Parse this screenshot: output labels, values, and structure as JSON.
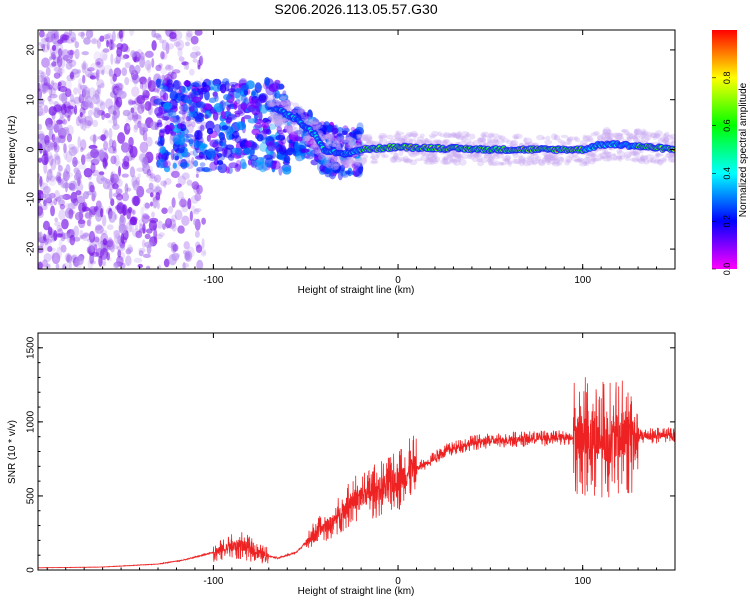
{
  "title": "S206.2026.113.05.57.G30",
  "chart_data": [
    {
      "type": "heatmap",
      "xlabel": "Height of straight line (km)",
      "ylabel": "Frequency (Hz)",
      "xlim": [
        -195,
        150
      ],
      "ylim": [
        -24,
        24
      ],
      "xticks": [
        -100,
        0,
        100
      ],
      "yticks": [
        -20,
        -10,
        0,
        10,
        20
      ],
      "colorbar": {
        "label": "Normalized spectral amplitude",
        "range": [
          0,
          1
        ],
        "ticks": [
          0.0,
          0.2,
          0.4,
          0.6,
          0.8
        ],
        "tick_labels": [
          "0.0",
          "0.2",
          "0.4",
          "0.6",
          "0.8"
        ],
        "colormap": [
          "#ff00ff",
          "#0000ff",
          "#00ffff",
          "#00ff00",
          "#ffff00",
          "#ff0000"
        ]
      },
      "ridge": [
        {
          "x": -65,
          "y": 8
        },
        {
          "x": -55,
          "y": 6
        },
        {
          "x": -45,
          "y": 3
        },
        {
          "x": -40,
          "y": 0
        },
        {
          "x": -30,
          "y": -1
        },
        {
          "x": -20,
          "y": 0
        },
        {
          "x": 0,
          "y": 0.5
        },
        {
          "x": 50,
          "y": 0
        },
        {
          "x": 100,
          "y": 0
        },
        {
          "x": 110,
          "y": 1
        },
        {
          "x": 120,
          "y": 1
        },
        {
          "x": 150,
          "y": 0
        }
      ]
    },
    {
      "type": "line",
      "xlabel": "Height of straight line (km)",
      "ylabel": "SNR (10 * v/v)",
      "xlim": [
        -195,
        150
      ],
      "ylim": [
        0,
        1600
      ],
      "xticks": [
        -100,
        0,
        100
      ],
      "yticks": [
        0,
        500,
        1000,
        1500
      ],
      "line_color": "#ee2222",
      "envelope": [
        {
          "x": -195,
          "y": 15
        },
        {
          "x": -160,
          "y": 20
        },
        {
          "x": -130,
          "y": 40
        },
        {
          "x": -115,
          "y": 70
        },
        {
          "x": -100,
          "y": 120
        },
        {
          "x": -85,
          "y": 170
        },
        {
          "x": -75,
          "y": 110
        },
        {
          "x": -65,
          "y": 80
        },
        {
          "x": -55,
          "y": 120
        },
        {
          "x": -45,
          "y": 250
        },
        {
          "x": -35,
          "y": 330
        },
        {
          "x": -25,
          "y": 470
        },
        {
          "x": -15,
          "y": 520
        },
        {
          "x": -5,
          "y": 580
        },
        {
          "x": 5,
          "y": 650
        },
        {
          "x": 15,
          "y": 720
        },
        {
          "x": 25,
          "y": 800
        },
        {
          "x": 40,
          "y": 860
        },
        {
          "x": 60,
          "y": 880
        },
        {
          "x": 80,
          "y": 890
        },
        {
          "x": 95,
          "y": 900
        },
        {
          "x": 105,
          "y": 900
        },
        {
          "x": 115,
          "y": 880
        },
        {
          "x": 125,
          "y": 900
        },
        {
          "x": 150,
          "y": 910
        }
      ]
    }
  ]
}
